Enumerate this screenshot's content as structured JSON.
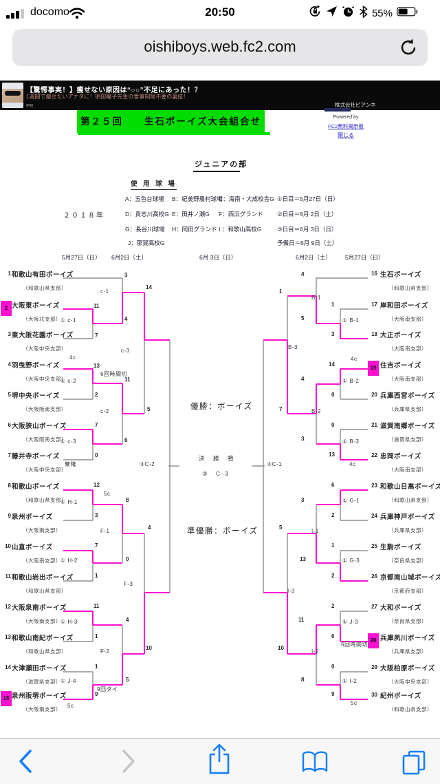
{
  "status_bar": {
    "carrier": "docomo",
    "time": "20:50",
    "battery_pct": "55%"
  },
  "url_bar": {
    "url": "oishiboys.web.fc2.com"
  },
  "ad": {
    "title": "【驚愕事実！】痩せない原因は“○○”不足にあった！？",
    "subtitle": "1週間で痩せたいアナタに！明田曜子先生の食事制限不要の裏技！",
    "pr": "PR",
    "company": "株式会社ピアンネ"
  },
  "banner": {
    "title": "第２５回　　生石ボーイズ大会組合せ",
    "powered": "Powered by",
    "link_board": "FC2無料掲示板",
    "link_close": "閉じる",
    "green": "#00dc00"
  },
  "section": {
    "title": "ジュニアの部",
    "venues_header": "使 用 球 場",
    "year": "２０１８年",
    "venues": [
      "A：五色台球場",
      "B：紀美野農村球場",
      "C：海南・大成校舎G",
      "D：貴志川高校G",
      "E：田井ノ瀬G",
      "F：西浜グランド",
      "G：長谷川球場",
      "H：岡田グランド",
      "I ：和歌山高校G",
      "J：那賀高校G"
    ],
    "schedule": [
      "①日目＝5月27日（日）",
      "②日目＝6月 2日（土）",
      "③日目＝6月 3日（日）",
      "予備日＝6月 9日（土）"
    ],
    "round_dates": [
      "5月27日（日）",
      "6月2日（土）",
      "6月 3日（日）",
      "6月2日（土）",
      "5月27日（日）"
    ]
  },
  "bracket": {
    "accent": "#ff10d0",
    "center": {
      "champion": "優勝：ボーイズ",
      "final_title": "決　勝　戦",
      "final_code": "③　C-3",
      "runner_up": "準優勝：ボーイズ"
    },
    "teams": [
      {
        "n": "1",
        "name": "和歌山有田ボーイズ",
        "branch": "（和歌山県支部）",
        "hl": false
      },
      {
        "n": "2",
        "name": "大阪東ボーイズ",
        "branch": "（大阪北支部）",
        "hl": true
      },
      {
        "n": "3",
        "name": "東大阪花園ボーイズ",
        "branch": "（大阪中央支部）",
        "hl": false
      },
      {
        "n": "4",
        "name": "羽曳野ボーイズ",
        "branch": "（大阪中央支部）",
        "hl": false
      },
      {
        "n": "5",
        "name": "堺中央ボーイズ",
        "branch": "（大阪阪南支部）",
        "hl": false
      },
      {
        "n": "6",
        "name": "大阪狭山ボーイズ",
        "branch": "（大阪阪南支部）",
        "hl": false
      },
      {
        "n": "7",
        "name": "藤井寺ボーイズ",
        "branch": "（大阪中央支部）",
        "hl": false
      },
      {
        "n": "8",
        "name": "和歌山ボーイズ",
        "branch": "（和歌山県支部）",
        "hl": false
      },
      {
        "n": "9",
        "name": "泉州ボーイズ",
        "branch": "（大阪南支部）",
        "hl": false
      },
      {
        "n": "10",
        "name": "山直ボーイズ",
        "branch": "（大阪南支部）",
        "hl": false
      },
      {
        "n": "11",
        "name": "和歌山岩出ボーイズ",
        "branch": "（和歌山県支部）",
        "hl": false
      },
      {
        "n": "12",
        "name": "大阪泉南ボーイズ",
        "branch": "（大阪南支部）",
        "hl": false
      },
      {
        "n": "13",
        "name": "和歌山南紀ボーイズ",
        "branch": "（和歌山県支部）",
        "hl": false
      },
      {
        "n": "14",
        "name": "大津瀬田ボーイズ",
        "branch": "（滋賀県支部）",
        "hl": false
      },
      {
        "n": "15",
        "name": "泉州阪堺ボーイズ",
        "branch": "（大阪南支部）",
        "hl": true
      },
      {
        "n": "16",
        "name": "生石ボーイズ",
        "branch": "（和歌山県支部）",
        "hl": false
      },
      {
        "n": "17",
        "name": "岸和田ボーイズ",
        "branch": "（大阪南支部）",
        "hl": false
      },
      {
        "n": "18",
        "name": "大正ボーイズ",
        "branch": "（大阪南支部）",
        "hl": false
      },
      {
        "n": "19",
        "name": "住吉ボーイズ",
        "branch": "（大阪南支部）",
        "hl": true
      },
      {
        "n": "20",
        "name": "兵庫西宮ボーイズ",
        "branch": "（兵庫県支部）",
        "hl": false
      },
      {
        "n": "21",
        "name": "滋賀南郷ボーイズ",
        "branch": "（滋賀県支部）",
        "hl": false
      },
      {
        "n": "22",
        "name": "忠岡ボーイズ",
        "branch": "（大阪南支部）",
        "hl": false
      },
      {
        "n": "23",
        "name": "和歌山日高ボーイズ",
        "branch": "（和歌山県支部）",
        "hl": false
      },
      {
        "n": "24",
        "name": "兵庫神戸ボーイズ",
        "branch": "（兵庫県支部）",
        "hl": false
      },
      {
        "n": "25",
        "name": "生駒ボーイズ",
        "branch": "（奈良県支部）",
        "hl": false
      },
      {
        "n": "26",
        "name": "京都南山城ボーイズ",
        "branch": "（京都府支部）",
        "hl": false
      },
      {
        "n": "27",
        "name": "大和ボーイズ",
        "branch": "（奈良県支部）",
        "hl": false
      },
      {
        "n": "28",
        "name": "兵庫夙川ボーイズ",
        "branch": "（兵庫県支部）",
        "hl": true
      },
      {
        "n": "29",
        "name": "大阪柏原ボーイズ",
        "branch": "（大阪中央支部）",
        "hl": false
      },
      {
        "n": "30",
        "name": "紀州ボーイズ",
        "branch": "（和歌山県支部）",
        "hl": false
      }
    ],
    "scores": [
      "3",
      "11",
      "4",
      "7",
      "14",
      "13",
      "2",
      "11",
      "7",
      "0",
      "6",
      "5",
      "12",
      "3",
      "8",
      "7",
      "1",
      "0",
      "4",
      "11",
      "1",
      "4",
      "1",
      "9",
      "5",
      "10",
      "4",
      "1",
      "3",
      "5",
      "1",
      "14",
      "0",
      "4",
      "0",
      "13",
      "3",
      "7",
      "6",
      "2",
      "3",
      "1",
      "2",
      "13",
      "5",
      "2",
      "6",
      "11",
      "0",
      "9",
      "8",
      "10"
    ],
    "labels": [
      "c-1",
      "① c-1",
      "4c",
      "① c-2",
      "6回時間切",
      "c-2",
      "① c-3",
      "棄権",
      "c-3",
      "5c",
      "① H-1",
      "F-1",
      "① H-2",
      "F-3",
      "① H-3",
      "F-2",
      "① J-4",
      "9回タイ",
      "5c",
      "③C-2",
      "B-1",
      "① B-1",
      "4c",
      "① B-2",
      "B-2",
      "① B-3",
      "4c",
      "B-3",
      "① G-1",
      "I-1",
      "① G-3",
      "I-3",
      "① J-3",
      "6回時間切",
      "I-2",
      "① I-2",
      "5c",
      "③C-1"
    ]
  }
}
